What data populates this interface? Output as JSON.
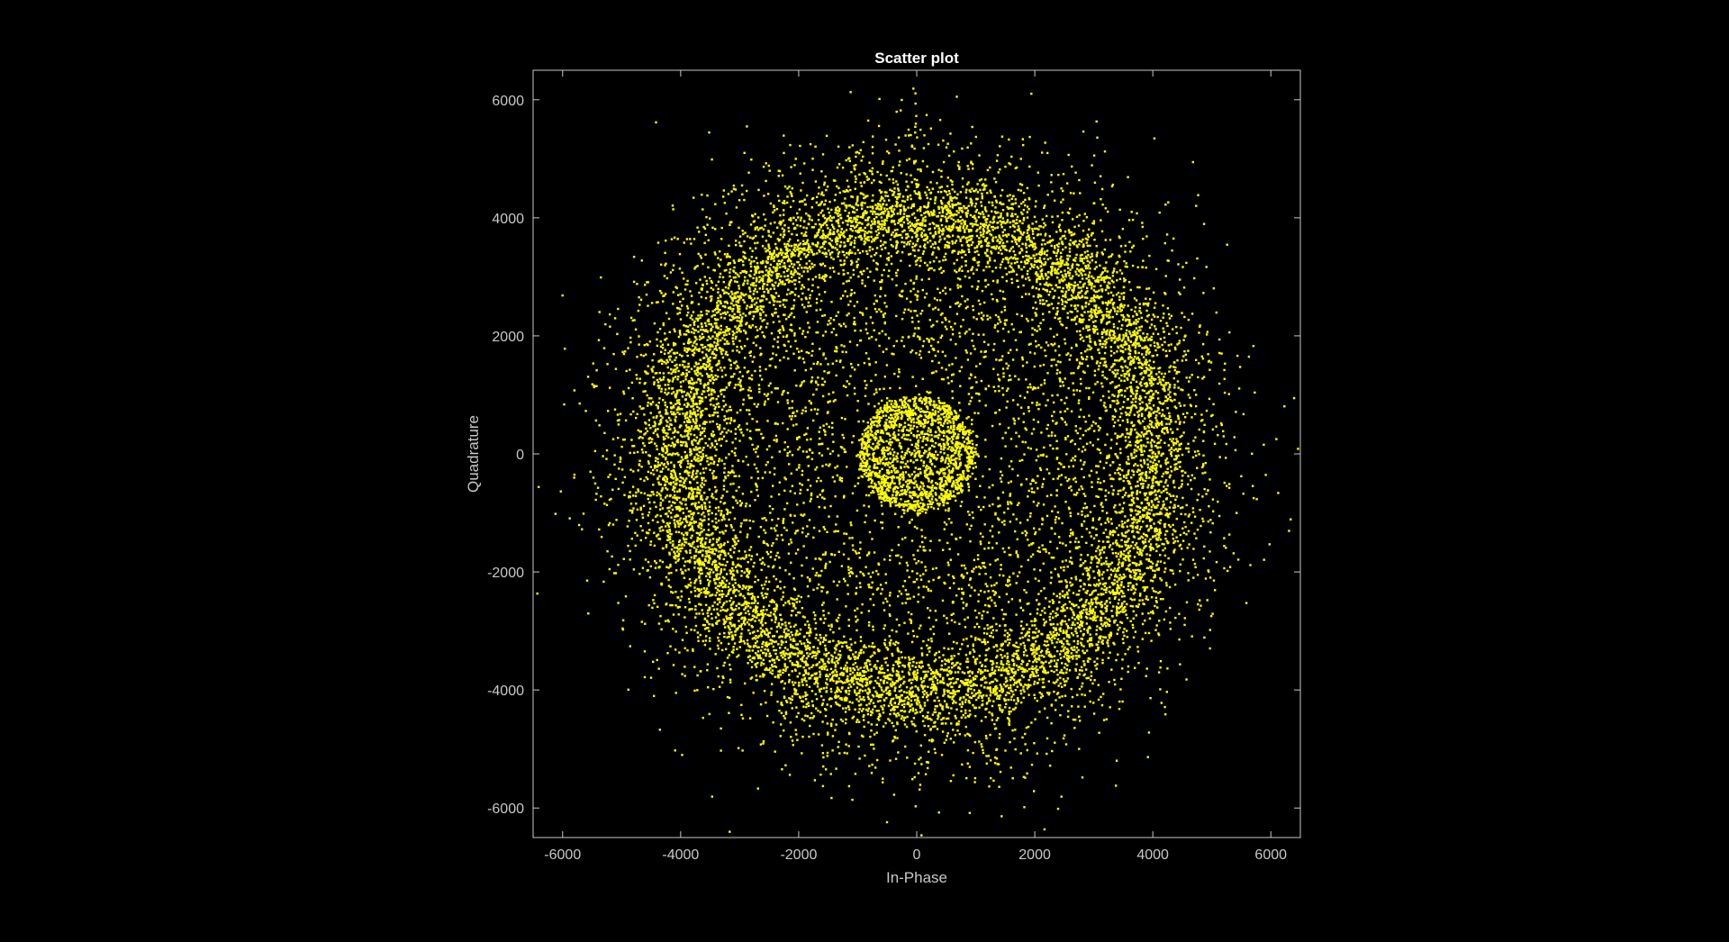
{
  "chart_data": {
    "type": "scatter",
    "title": "Scatter plot",
    "xlabel": "In-Phase",
    "ylabel": "Quadrature",
    "xlim": [
      -6500,
      6500
    ],
    "ylim": [
      -6500,
      6500
    ],
    "xticks": [
      -6000,
      -4000,
      -2000,
      0,
      2000,
      4000,
      6000
    ],
    "yticks": [
      -6000,
      -4000,
      -2000,
      0,
      2000,
      4000,
      6000
    ],
    "grid": false,
    "colors": {
      "background": "#000000",
      "axes": "#c8c8c8",
      "marker": "#ffff00"
    },
    "series": [
      {
        "distribution": [
          {
            "shape": "ring",
            "radius": 4000,
            "spread": 350,
            "count": 7000
          },
          {
            "shape": "ring",
            "radius": 4500,
            "spread": 700,
            "count": 3500
          },
          {
            "shape": "ring",
            "radius": 2600,
            "spread": 900,
            "count": 2500
          },
          {
            "shape": "ring",
            "radius": 900,
            "spread": 60,
            "count": 700
          },
          {
            "shape": "ring",
            "radius": 700,
            "spread": 60,
            "count": 500
          },
          {
            "shape": "disc",
            "radius": 600,
            "count": 400
          }
        ]
      }
    ]
  }
}
